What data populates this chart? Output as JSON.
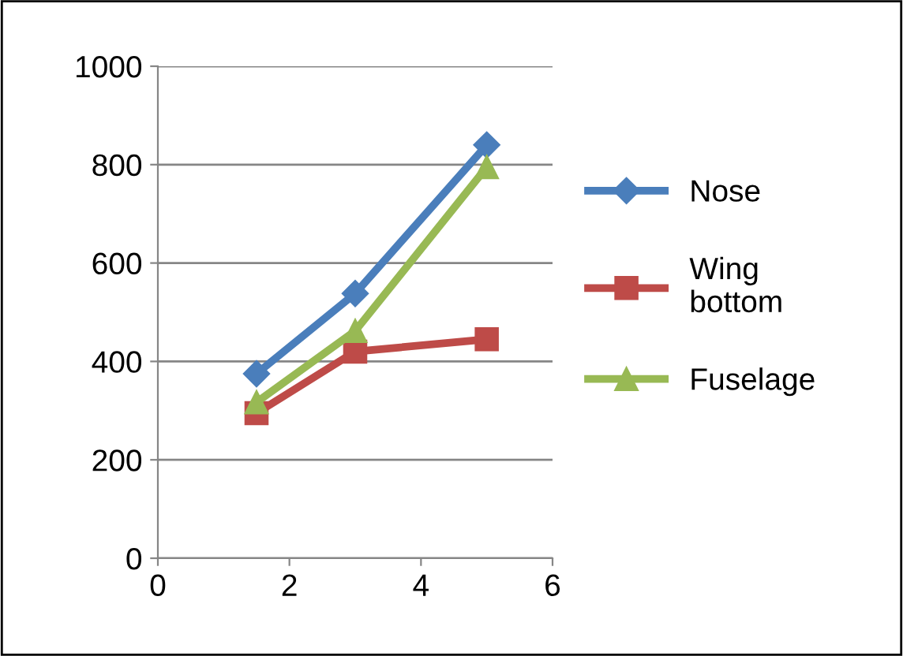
{
  "chart_data": {
    "type": "line",
    "x": [
      1.5,
      3,
      5
    ],
    "series": [
      {
        "name": "Nose",
        "color": "#4a7ebb",
        "values": [
          375,
          538,
          840
        ],
        "marker": "diamond"
      },
      {
        "name": "Wing bottom",
        "color": "#be4b48",
        "values": [
          295,
          420,
          445
        ],
        "marker": "square"
      },
      {
        "name": "Fuselage",
        "color": "#98b954",
        "values": [
          317,
          462,
          795
        ],
        "marker": "triangle"
      }
    ],
    "xlim": [
      0,
      6
    ],
    "xticks": [
      0,
      2,
      4,
      6
    ],
    "ylim": [
      0,
      1000
    ],
    "yticks": [
      0,
      200,
      400,
      600,
      800,
      1000
    ],
    "grid": "y",
    "legend": "right",
    "line_style": "solid"
  }
}
